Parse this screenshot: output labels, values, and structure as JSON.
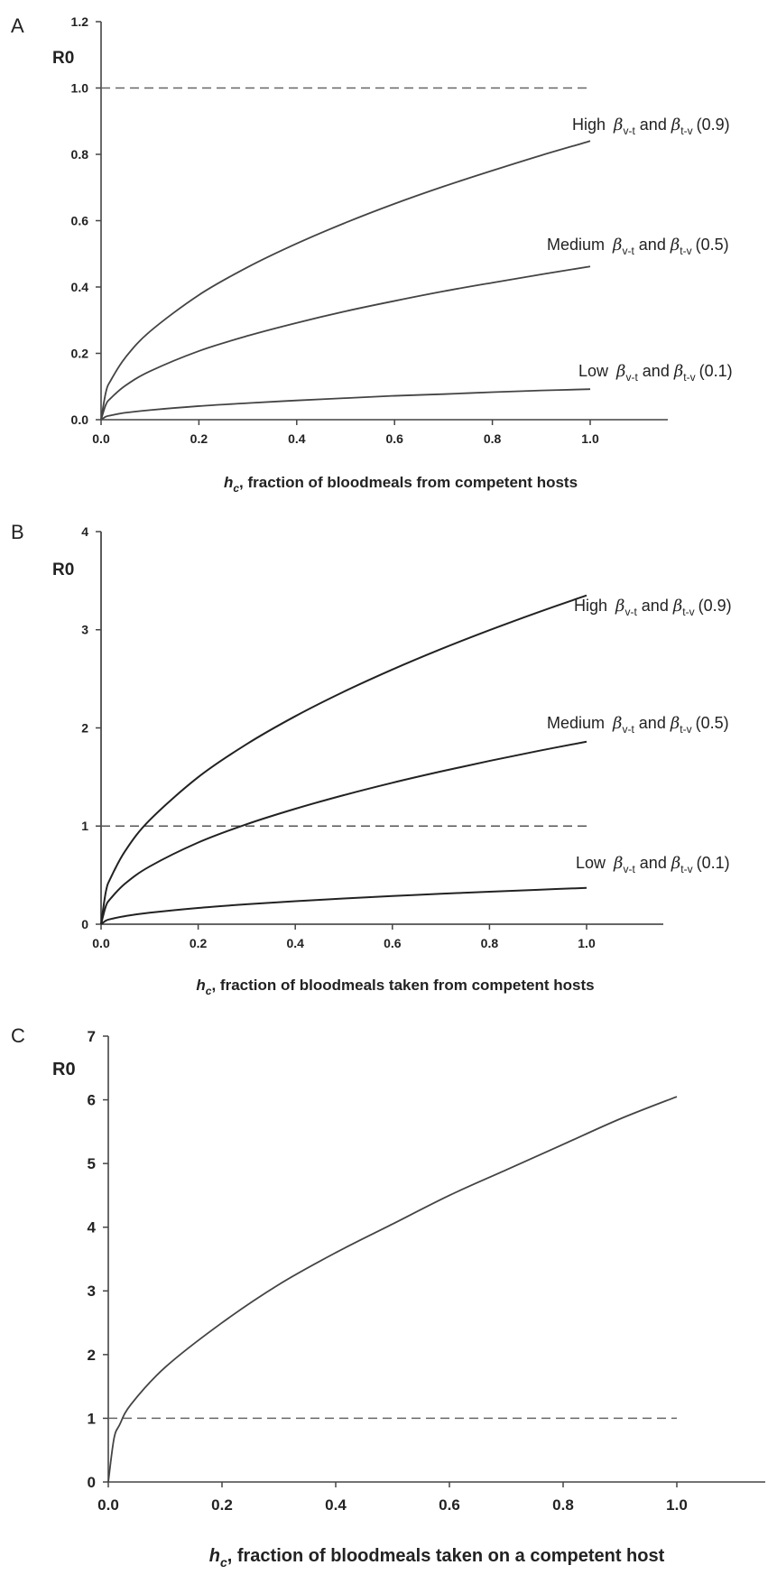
{
  "chart_data": [
    {
      "panel": "A",
      "type": "line",
      "ylabel": "R0",
      "xlabel_prefix": "h",
      "xlabel_sub": "c",
      "xlabel_text": ", fraction of bloodmeals from competent hosts",
      "xlim": [
        0,
        1
      ],
      "ylim": [
        0,
        1.2
      ],
      "xticks": [
        "0.0",
        "0.2",
        "0.4",
        "0.6",
        "0.8",
        "1.0"
      ],
      "xtick_values": [
        0,
        0.2,
        0.4,
        0.6,
        0.8,
        1.0
      ],
      "yticks": [
        "0.0",
        "0.2",
        "0.4",
        "0.6",
        "0.8",
        "1.0",
        "1.2"
      ],
      "ytick_values": [
        0,
        0.2,
        0.4,
        0.6,
        0.8,
        1.0,
        1.2
      ],
      "threshold": 1.0,
      "x": [
        0,
        0.01,
        0.02,
        0.05,
        0.1,
        0.2,
        0.3,
        0.4,
        0.5,
        0.6,
        0.7,
        0.8,
        0.9,
        1.0
      ],
      "series": [
        {
          "level": "High",
          "value": "(0.9)",
          "y": [
            0,
            0.084,
            0.119,
            0.188,
            0.266,
            0.376,
            0.46,
            0.531,
            0.594,
            0.651,
            0.703,
            0.751,
            0.797,
            0.84
          ]
        },
        {
          "level": "Medium",
          "value": "(0.5)",
          "y": [
            0,
            0.046,
            0.065,
            0.103,
            0.146,
            0.207,
            0.253,
            0.292,
            0.327,
            0.358,
            0.387,
            0.413,
            0.438,
            0.462
          ]
        },
        {
          "level": "Low",
          "value": "(0.1)",
          "y": [
            0,
            0.0093,
            0.013,
            0.021,
            0.029,
            0.041,
            0.05,
            0.058,
            0.065,
            0.072,
            0.077,
            0.083,
            0.088,
            0.092
          ]
        }
      ]
    },
    {
      "panel": "B",
      "type": "line",
      "ylabel": "R0",
      "xlabel_prefix": "h",
      "xlabel_sub": "c",
      "xlabel_text": ", fraction of bloodmeals taken from competent hosts",
      "xlim": [
        0,
        1
      ],
      "ylim": [
        0,
        4
      ],
      "xticks": [
        "0.0",
        "0.2",
        "0.4",
        "0.6",
        "0.8",
        "1.0"
      ],
      "xtick_values": [
        0,
        0.2,
        0.4,
        0.6,
        0.8,
        1.0
      ],
      "yticks": [
        "0",
        "1",
        "2",
        "3",
        "4"
      ],
      "ytick_values": [
        0,
        1,
        2,
        3,
        4
      ],
      "threshold": 1,
      "x": [
        0,
        0.01,
        0.02,
        0.05,
        0.1,
        0.2,
        0.3,
        0.4,
        0.5,
        0.6,
        0.7,
        0.8,
        0.9,
        1.0
      ],
      "series": [
        {
          "level": "High",
          "value": "(0.9)",
          "y": [
            0,
            0.335,
            0.474,
            0.749,
            1.06,
            1.498,
            1.835,
            2.119,
            2.369,
            2.595,
            2.803,
            2.996,
            3.178,
            3.35
          ]
        },
        {
          "level": "Medium",
          "value": "(0.5)",
          "y": [
            0,
            0.186,
            0.263,
            0.416,
            0.588,
            0.832,
            1.019,
            1.176,
            1.315,
            1.441,
            1.556,
            1.664,
            1.765,
            1.86
          ]
        },
        {
          "level": "Low",
          "value": "(0.1)",
          "y": [
            0,
            0.037,
            0.053,
            0.083,
            0.117,
            0.166,
            0.203,
            0.234,
            0.262,
            0.287,
            0.31,
            0.331,
            0.351,
            0.37
          ]
        }
      ]
    },
    {
      "panel": "C",
      "type": "line",
      "ylabel": "R0",
      "xlabel_prefix": "h",
      "xlabel_sub": "c",
      "xlabel_text": ", fraction of bloodmeals taken on a competent host",
      "xlim": [
        0,
        1
      ],
      "ylim": [
        0,
        7
      ],
      "xticks": [
        "0.0",
        "0.2",
        "0.4",
        "0.6",
        "0.8",
        "1.0"
      ],
      "xtick_values": [
        0,
        0.2,
        0.4,
        0.6,
        0.8,
        1.0
      ],
      "yticks": [
        "0",
        "1",
        "2",
        "3",
        "4",
        "5",
        "6",
        "7"
      ],
      "ytick_values": [
        0,
        1,
        2,
        3,
        4,
        5,
        6,
        7
      ],
      "threshold": 1,
      "x": [
        0,
        0.01,
        0.02,
        0.04,
        0.1,
        0.2,
        0.3,
        0.4,
        0.5,
        0.6,
        0.7,
        0.8,
        0.9,
        1.0
      ],
      "series": [
        {
          "y": [
            0,
            0.68,
            0.9,
            1.22,
            1.8,
            2.5,
            3.1,
            3.6,
            4.05,
            4.5,
            4.9,
            5.3,
            5.7,
            6.05
          ]
        }
      ]
    }
  ]
}
